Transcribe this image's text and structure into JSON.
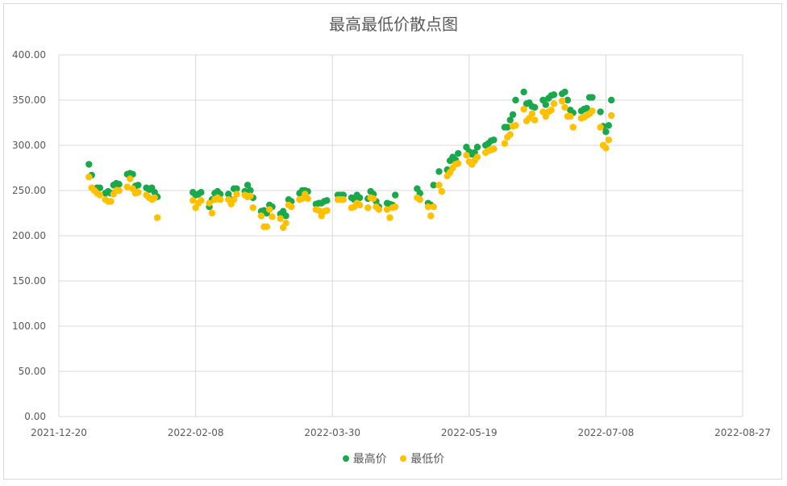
{
  "chart_data": {
    "type": "scatter",
    "title": "最高最低价散点图",
    "xlabel": "",
    "ylabel": "",
    "x_axis": {
      "type": "date",
      "min": "2021-12-20",
      "max": "2022-08-27",
      "tick_labels": [
        "2021-12-20",
        "2022-02-08",
        "2022-03-30",
        "2022-05-19",
        "2022-07-08",
        "2022-08-27"
      ]
    },
    "y_axis": {
      "min": 0,
      "max": 400,
      "tick_labels": [
        "0.00",
        "50.00",
        "100.00",
        "150.00",
        "200.00",
        "250.00",
        "300.00",
        "350.00",
        "400.00"
      ]
    },
    "grid": true,
    "legend_position": "bottom",
    "series": [
      {
        "name": "最高价",
        "color": "#1aa84d",
        "points": [
          [
            "2021-12-31",
            279
          ],
          [
            "2022-01-01",
            267
          ],
          [
            "2022-01-03",
            253
          ],
          [
            "2022-01-04",
            253
          ],
          [
            "2022-01-06",
            247
          ],
          [
            "2022-01-07",
            249
          ],
          [
            "2022-01-08",
            247
          ],
          [
            "2022-01-09",
            256
          ],
          [
            "2022-01-10",
            258
          ],
          [
            "2022-01-11",
            257
          ],
          [
            "2022-01-14",
            268
          ],
          [
            "2022-01-15",
            269
          ],
          [
            "2022-01-16",
            268
          ],
          [
            "2022-01-17",
            255
          ],
          [
            "2022-01-18",
            256
          ],
          [
            "2022-01-21",
            253
          ],
          [
            "2022-01-22",
            251
          ],
          [
            "2022-01-23",
            253
          ],
          [
            "2022-01-24",
            248
          ],
          [
            "2022-01-25",
            243
          ],
          [
            "2022-02-07",
            248
          ],
          [
            "2022-02-08",
            245
          ],
          [
            "2022-02-09",
            246
          ],
          [
            "2022-02-10",
            248
          ],
          [
            "2022-02-13",
            232
          ],
          [
            "2022-02-14",
            240
          ],
          [
            "2022-02-15",
            247
          ],
          [
            "2022-02-16",
            249
          ],
          [
            "2022-02-17",
            246
          ],
          [
            "2022-02-20",
            246
          ],
          [
            "2022-02-21",
            240
          ],
          [
            "2022-02-22",
            252
          ],
          [
            "2022-02-23",
            252
          ],
          [
            "2022-02-26",
            249
          ],
          [
            "2022-02-27",
            256
          ],
          [
            "2022-02-28",
            250
          ],
          [
            "2022-03-01",
            242
          ],
          [
            "2022-03-04",
            227
          ],
          [
            "2022-03-05",
            228
          ],
          [
            "2022-03-06",
            225
          ],
          [
            "2022-03-07",
            234
          ],
          [
            "2022-03-08",
            232
          ],
          [
            "2022-03-11",
            224
          ],
          [
            "2022-03-12",
            227
          ],
          [
            "2022-03-13",
            222
          ],
          [
            "2022-03-14",
            240
          ],
          [
            "2022-03-15",
            238
          ],
          [
            "2022-03-18",
            247
          ],
          [
            "2022-03-19",
            250
          ],
          [
            "2022-03-20",
            250
          ],
          [
            "2022-03-21",
            249
          ],
          [
            "2022-03-24",
            235
          ],
          [
            "2022-03-25",
            236
          ],
          [
            "2022-03-26",
            236
          ],
          [
            "2022-03-27",
            238
          ],
          [
            "2022-03-28",
            239
          ],
          [
            "2022-04-01",
            245
          ],
          [
            "2022-04-02",
            245
          ],
          [
            "2022-04-03",
            245
          ],
          [
            "2022-04-06",
            242
          ],
          [
            "2022-04-07",
            240
          ],
          [
            "2022-04-08",
            245
          ],
          [
            "2022-04-09",
            242
          ],
          [
            "2022-04-12",
            241
          ],
          [
            "2022-04-13",
            249
          ],
          [
            "2022-04-14",
            246
          ],
          [
            "2022-04-15",
            238
          ],
          [
            "2022-04-16",
            232
          ],
          [
            "2022-04-19",
            236
          ],
          [
            "2022-04-20",
            235
          ],
          [
            "2022-04-21",
            234
          ],
          [
            "2022-04-22",
            245
          ],
          [
            "2022-04-30",
            252
          ],
          [
            "2022-05-01",
            247
          ],
          [
            "2022-05-04",
            236
          ],
          [
            "2022-05-05",
            234
          ],
          [
            "2022-05-06",
            256
          ],
          [
            "2022-05-08",
            271
          ],
          [
            "2022-05-11",
            273
          ],
          [
            "2022-05-12",
            283
          ],
          [
            "2022-05-13",
            287
          ],
          [
            "2022-05-14",
            284
          ],
          [
            "2022-05-15",
            291
          ],
          [
            "2022-05-18",
            298
          ],
          [
            "2022-05-19",
            293
          ],
          [
            "2022-05-20",
            290
          ],
          [
            "2022-05-21",
            292
          ],
          [
            "2022-05-22",
            298
          ],
          [
            "2022-05-25",
            300
          ],
          [
            "2022-05-26",
            302
          ],
          [
            "2022-05-27",
            305
          ],
          [
            "2022-05-28",
            306
          ],
          [
            "2022-06-01",
            320
          ],
          [
            "2022-06-02",
            320
          ],
          [
            "2022-06-03",
            328
          ],
          [
            "2022-06-04",
            334
          ],
          [
            "2022-06-05",
            350
          ],
          [
            "2022-06-08",
            359
          ],
          [
            "2022-06-09",
            346
          ],
          [
            "2022-06-10",
            347
          ],
          [
            "2022-06-11",
            343
          ],
          [
            "2022-06-12",
            342
          ],
          [
            "2022-06-15",
            350
          ],
          [
            "2022-06-16",
            345
          ],
          [
            "2022-06-17",
            352
          ],
          [
            "2022-06-18",
            355
          ],
          [
            "2022-06-19",
            356
          ],
          [
            "2022-06-22",
            357
          ],
          [
            "2022-06-23",
            359
          ],
          [
            "2022-06-24",
            350
          ],
          [
            "2022-06-25",
            339
          ],
          [
            "2022-06-26",
            336
          ],
          [
            "2022-06-29",
            338
          ],
          [
            "2022-06-30",
            340
          ],
          [
            "2022-07-01",
            341
          ],
          [
            "2022-07-02",
            353
          ],
          [
            "2022-07-03",
            353
          ],
          [
            "2022-07-06",
            337
          ],
          [
            "2022-07-07",
            321
          ],
          [
            "2022-07-08",
            315
          ],
          [
            "2022-07-09",
            322
          ],
          [
            "2022-07-10",
            350
          ]
        ]
      },
      {
        "name": "最低价",
        "color": "#ffc000",
        "points": [
          [
            "2021-12-31",
            265
          ],
          [
            "2022-01-01",
            253
          ],
          [
            "2022-01-02",
            250
          ],
          [
            "2022-01-03",
            247
          ],
          [
            "2022-01-04",
            245
          ],
          [
            "2022-01-06",
            240
          ],
          [
            "2022-01-07",
            238
          ],
          [
            "2022-01-08",
            238
          ],
          [
            "2022-01-09",
            246
          ],
          [
            "2022-01-10",
            250
          ],
          [
            "2022-01-11",
            250
          ],
          [
            "2022-01-14",
            254
          ],
          [
            "2022-01-15",
            263
          ],
          [
            "2022-01-16",
            252
          ],
          [
            "2022-01-17",
            247
          ],
          [
            "2022-01-18",
            248
          ],
          [
            "2022-01-21",
            245
          ],
          [
            "2022-01-22",
            242
          ],
          [
            "2022-01-23",
            240
          ],
          [
            "2022-01-24",
            242
          ],
          [
            "2022-01-25",
            220
          ],
          [
            "2022-02-07",
            239
          ],
          [
            "2022-02-08",
            231
          ],
          [
            "2022-02-09",
            236
          ],
          [
            "2022-02-10",
            239
          ],
          [
            "2022-02-13",
            236
          ],
          [
            "2022-02-14",
            225
          ],
          [
            "2022-02-15",
            240
          ],
          [
            "2022-02-16",
            242
          ],
          [
            "2022-02-17",
            240
          ],
          [
            "2022-02-20",
            240
          ],
          [
            "2022-02-21",
            235
          ],
          [
            "2022-02-22",
            240
          ],
          [
            "2022-02-23",
            246
          ],
          [
            "2022-02-26",
            245
          ],
          [
            "2022-02-27",
            243
          ],
          [
            "2022-02-28",
            244
          ],
          [
            "2022-03-01",
            231
          ],
          [
            "2022-03-04",
            222
          ],
          [
            "2022-03-05",
            210
          ],
          [
            "2022-03-06",
            210
          ],
          [
            "2022-03-07",
            229
          ],
          [
            "2022-03-08",
            221
          ],
          [
            "2022-03-11",
            219
          ],
          [
            "2022-03-12",
            209
          ],
          [
            "2022-03-13",
            214
          ],
          [
            "2022-03-14",
            234
          ],
          [
            "2022-03-15",
            232
          ],
          [
            "2022-03-18",
            240
          ],
          [
            "2022-03-19",
            241
          ],
          [
            "2022-03-20",
            246
          ],
          [
            "2022-03-21",
            241
          ],
          [
            "2022-03-24",
            229
          ],
          [
            "2022-03-25",
            228
          ],
          [
            "2022-03-26",
            222
          ],
          [
            "2022-03-27",
            227
          ],
          [
            "2022-03-28",
            228
          ],
          [
            "2022-04-01",
            240
          ],
          [
            "2022-04-02",
            240
          ],
          [
            "2022-04-03",
            240
          ],
          [
            "2022-04-06",
            231
          ],
          [
            "2022-04-07",
            232
          ],
          [
            "2022-04-08",
            236
          ],
          [
            "2022-04-09",
            234
          ],
          [
            "2022-04-12",
            231
          ],
          [
            "2022-04-13",
            242
          ],
          [
            "2022-04-14",
            241
          ],
          [
            "2022-04-15",
            232
          ],
          [
            "2022-04-16",
            229
          ],
          [
            "2022-04-19",
            229
          ],
          [
            "2022-04-20",
            220
          ],
          [
            "2022-04-21",
            231
          ],
          [
            "2022-04-22",
            232
          ],
          [
            "2022-04-30",
            242
          ],
          [
            "2022-05-01",
            240
          ],
          [
            "2022-05-04",
            232
          ],
          [
            "2022-05-05",
            222
          ],
          [
            "2022-05-06",
            232
          ],
          [
            "2022-05-08",
            256
          ],
          [
            "2022-05-09",
            249
          ],
          [
            "2022-05-11",
            266
          ],
          [
            "2022-05-12",
            270
          ],
          [
            "2022-05-13",
            275
          ],
          [
            "2022-05-14",
            279
          ],
          [
            "2022-05-15",
            280
          ],
          [
            "2022-05-18",
            289
          ],
          [
            "2022-05-19",
            282
          ],
          [
            "2022-05-20",
            279
          ],
          [
            "2022-05-21",
            283
          ],
          [
            "2022-05-22",
            287
          ],
          [
            "2022-05-25",
            292
          ],
          [
            "2022-05-26",
            294
          ],
          [
            "2022-05-27",
            295
          ],
          [
            "2022-05-28",
            296
          ],
          [
            "2022-06-01",
            302
          ],
          [
            "2022-06-02",
            309
          ],
          [
            "2022-06-03",
            312
          ],
          [
            "2022-06-04",
            321
          ],
          [
            "2022-06-05",
            322
          ],
          [
            "2022-06-08",
            340
          ],
          [
            "2022-06-09",
            327
          ],
          [
            "2022-06-10",
            330
          ],
          [
            "2022-06-11",
            335
          ],
          [
            "2022-06-12",
            328
          ],
          [
            "2022-06-15",
            337
          ],
          [
            "2022-06-16",
            332
          ],
          [
            "2022-06-17",
            337
          ],
          [
            "2022-06-18",
            339
          ],
          [
            "2022-06-19",
            346
          ],
          [
            "2022-06-22",
            349
          ],
          [
            "2022-06-23",
            342
          ],
          [
            "2022-06-24",
            332
          ],
          [
            "2022-06-25",
            332
          ],
          [
            "2022-06-26",
            320
          ],
          [
            "2022-06-29",
            330
          ],
          [
            "2022-06-30",
            331
          ],
          [
            "2022-07-01",
            333
          ],
          [
            "2022-07-02",
            335
          ],
          [
            "2022-07-03",
            338
          ],
          [
            "2022-07-06",
            320
          ],
          [
            "2022-07-07",
            300
          ],
          [
            "2022-07-08",
            297
          ],
          [
            "2022-07-09",
            306
          ],
          [
            "2022-07-10",
            333
          ]
        ]
      }
    ]
  }
}
